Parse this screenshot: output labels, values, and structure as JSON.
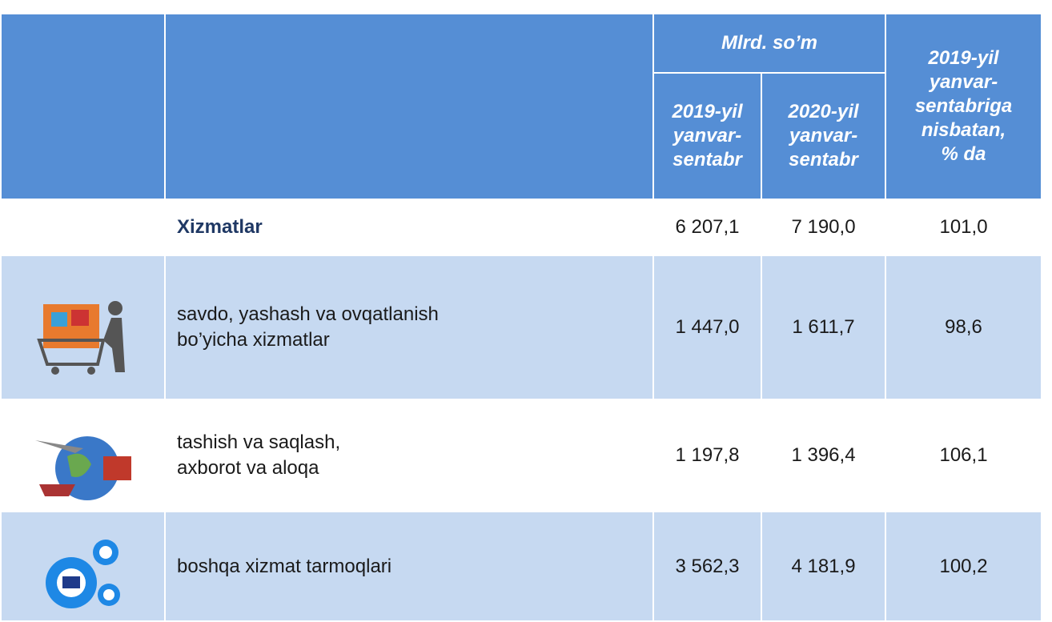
{
  "header": {
    "group": "Mlrd. so’m",
    "col_2019": "2019-yil\nyanvar-\nsentabr",
    "col_2020": "2020-yil\nyanvar-\nsentabr",
    "col_ratio": "2019-yil\nyanvar-\nsentabriga\nnisbatan,\n% da"
  },
  "table": {
    "rows": [
      [
        "Xizmatlar",
        "6 207,1",
        "7 190,0",
        "101,0"
      ],
      [
        "savdo, yashash va ovqatlanish\nbo’yicha xizmatlar",
        "1 447,0",
        "1 611,7",
        "98,6"
      ],
      [
        "tashish va saqlash,\naxborot va aloqa",
        "1 197,8",
        "1 396,4",
        "106,1"
      ],
      [
        "boshqa xizmat tarmoqlari",
        "3 562,3",
        "4 181,9",
        "100,2"
      ]
    ]
  }
}
